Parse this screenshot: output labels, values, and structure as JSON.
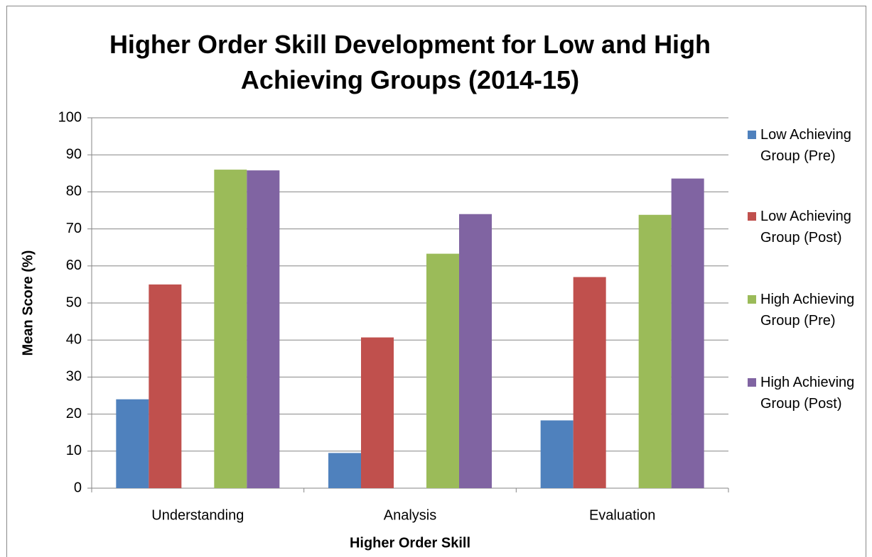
{
  "chart_data": {
    "type": "bar",
    "title": "Higher Order Skill Development for Low and High Achieving Groups (2014-15)",
    "x_label": "Higher Order Skill",
    "y_label": "Mean Score (%)",
    "categories": [
      "Understanding",
      "Analysis",
      "Evaluation"
    ],
    "series": [
      {
        "name": "Low Achieving Group (Pre)",
        "color": "#4f81bd",
        "values": [
          24,
          9.5,
          18.3
        ]
      },
      {
        "name": "Low Achieving Group (Post)",
        "color": "#c0504d",
        "values": [
          55,
          40.7,
          57
        ]
      },
      {
        "name": "High Achieving Group (Pre)",
        "color": "#9bbb59",
        "values": [
          86,
          63.3,
          73.8
        ]
      },
      {
        "name": "High Achieving Group (Post)",
        "color": "#8064a2",
        "values": [
          85.8,
          74,
          83.6
        ]
      }
    ],
    "ylim": [
      0,
      100
    ],
    "yticks": [
      0,
      10,
      20,
      30,
      40,
      50,
      60,
      70,
      80,
      90,
      100
    ],
    "grid": true,
    "legend": "right"
  }
}
